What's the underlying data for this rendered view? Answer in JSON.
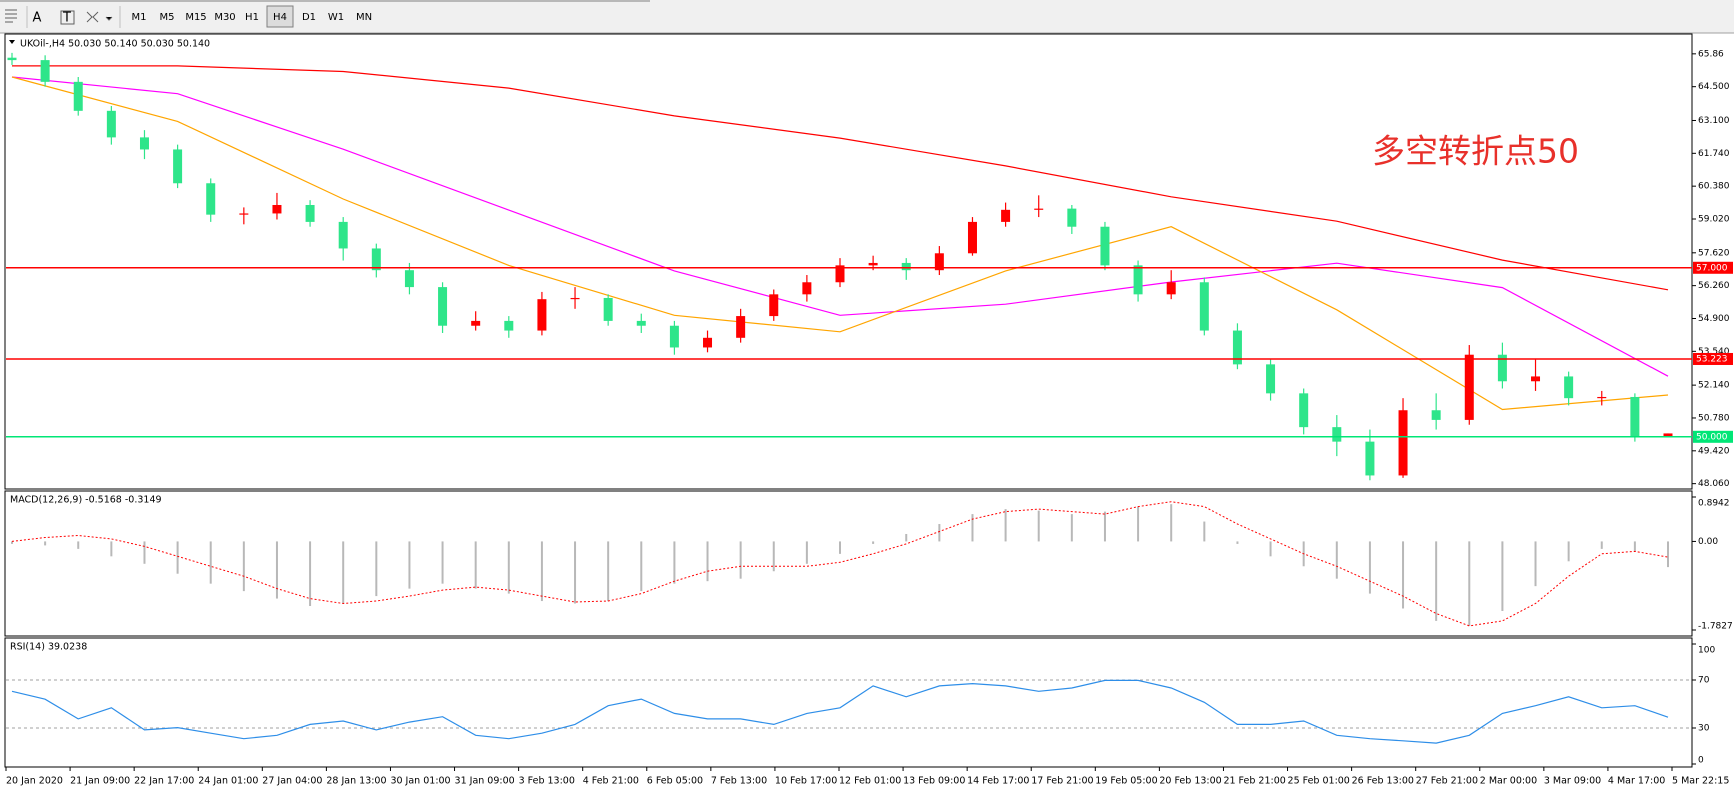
{
  "toolbar": {
    "tools": [
      "A",
      "T"
    ],
    "timeframes": [
      "M1",
      "M5",
      "M15",
      "M30",
      "H1",
      "H4",
      "D1",
      "W1",
      "MN"
    ],
    "active": 5
  },
  "chart_data": [
    {
      "type": "candlestick",
      "title": "UKOil-,H4  50.030 50.140 50.030 50.140",
      "annotation": "多空转折点50",
      "up_color": "#ff0000",
      "down_color": "#2ee58a",
      "open": [
        65.7,
        65.6,
        64.7,
        63.5,
        62.4,
        61.9,
        60.5,
        59.2,
        59.25,
        59.6,
        58.9,
        57.8,
        56.9,
        56.2,
        54.6,
        54.8,
        54.4,
        55.7,
        55.75,
        54.8,
        54.6,
        53.7,
        54.1,
        55.0,
        55.9,
        56.4,
        57.1,
        57.2,
        56.9,
        57.6,
        58.9,
        59.4,
        59.45,
        58.7,
        57.1,
        55.9,
        56.4,
        54.4,
        53.0,
        51.8,
        50.4,
        49.8,
        48.4,
        51.1,
        50.7,
        53.4,
        52.3,
        52.5,
        51.6,
        51.65,
        50.03
      ],
      "high": [
        65.9,
        65.8,
        64.9,
        63.7,
        62.7,
        62.1,
        60.7,
        59.5,
        60.1,
        59.8,
        59.1,
        58.0,
        57.2,
        56.4,
        55.2,
        55.0,
        56.0,
        56.2,
        55.9,
        55.1,
        54.8,
        54.4,
        55.3,
        56.1,
        56.7,
        57.4,
        57.5,
        57.4,
        57.9,
        59.1,
        59.7,
        60.0,
        59.6,
        58.9,
        57.3,
        56.9,
        56.6,
        54.7,
        53.2,
        52.0,
        50.9,
        50.3,
        51.6,
        51.8,
        53.8,
        53.9,
        53.2,
        52.7,
        51.9,
        51.8,
        50.14
      ],
      "low": [
        65.4,
        64.5,
        63.3,
        62.1,
        61.5,
        60.3,
        58.9,
        58.8,
        59.0,
        58.7,
        57.3,
        56.6,
        55.9,
        54.3,
        54.4,
        54.1,
        54.2,
        55.3,
        54.6,
        54.3,
        53.4,
        53.5,
        53.9,
        54.8,
        55.6,
        56.2,
        56.9,
        56.5,
        56.7,
        57.5,
        58.7,
        59.1,
        58.4,
        56.9,
        55.6,
        55.7,
        54.2,
        52.8,
        51.5,
        50.1,
        49.2,
        48.2,
        48.3,
        50.3,
        50.5,
        52.0,
        51.9,
        51.3,
        51.3,
        49.8,
        50.03
      ],
      "close": [
        65.6,
        64.7,
        63.5,
        62.4,
        61.9,
        60.5,
        59.2,
        59.25,
        59.6,
        58.9,
        57.8,
        56.9,
        56.2,
        54.6,
        54.8,
        54.4,
        55.7,
        55.75,
        54.8,
        54.6,
        53.7,
        54.1,
        55.0,
        55.9,
        56.4,
        57.1,
        57.2,
        56.9,
        57.6,
        58.9,
        59.4,
        59.45,
        58.7,
        57.1,
        55.9,
        56.4,
        54.4,
        53.0,
        51.8,
        50.4,
        49.8,
        48.4,
        51.1,
        50.7,
        53.4,
        52.3,
        52.5,
        51.6,
        51.65,
        50.0,
        50.14
      ],
      "series": [
        {
          "color": "#ff0000",
          "values": [
            65.36,
            65.36,
            65.13,
            64.44,
            63.29,
            62.37,
            61.22,
            59.94,
            58.93,
            57.32,
            56.09
          ]
        },
        {
          "color": "#ff00ff",
          "values": [
            64.9,
            64.21,
            61.91,
            59.39,
            56.87,
            55.03,
            55.49,
            56.41,
            57.19,
            56.18,
            52.51
          ]
        },
        {
          "color": "#ffa500",
          "values": [
            64.9,
            63.06,
            59.85,
            57.1,
            55.03,
            54.35,
            56.87,
            58.7,
            55.26,
            51.13,
            51.73
          ]
        }
      ],
      "levels": [
        {
          "value": 57,
          "label": "57.000",
          "color": "#ff0000"
        },
        {
          "value": 53.223,
          "label": "53.223",
          "color": "#ff0000"
        },
        {
          "value": 50,
          "label": "50.000",
          "color": "#00e676"
        }
      ],
      "ylim": [
        47.88,
        66.64
      ],
      "yticks": [
        {
          "value": 65.86,
          "label": "65.86"
        },
        {
          "value": 64.5,
          "label": "64.500"
        },
        {
          "value": 63.1,
          "label": "63.100"
        },
        {
          "value": 61.74,
          "label": "61.740"
        },
        {
          "value": 60.38,
          "label": "60.380"
        },
        {
          "value": 59.02,
          "label": "59.020"
        },
        {
          "value": 57.62,
          "label": "57.620"
        },
        {
          "value": 56.26,
          "label": "56.260"
        },
        {
          "value": 54.9,
          "label": "54.900"
        },
        {
          "value": 53.54,
          "label": "53.540"
        },
        {
          "value": 52.14,
          "label": "52.140"
        },
        {
          "value": 50.78,
          "label": "50.780"
        },
        {
          "value": 49.42,
          "label": "49.420"
        },
        {
          "value": 48.06,
          "label": "48.060"
        }
      ],
      "x_labels": [
        "20 Jan 2020",
        "21 Jan 09:00",
        "22 Jan 17:00",
        "24 Jan 01:00",
        "27 Jan 04:00",
        "28 Jan 13:00",
        "30 Jan 01:00",
        "31 Jan 09:00",
        "3 Feb 13:00",
        "4 Feb 21:00",
        "6 Feb 05:00",
        "7 Feb 13:00",
        "10 Feb 17:00",
        "12 Feb 01:00",
        "13 Feb 09:00",
        "14 Feb 17:00",
        "17 Feb 21:00",
        "19 Feb 05:00",
        "20 Feb 13:00",
        "21 Feb 21:00",
        "25 Feb 01:00",
        "26 Feb 13:00",
        "27 Feb 21:00",
        "2 Mar 00:00",
        "3 Mar 09:00",
        "4 Mar 17:00",
        "5 Mar 22:15"
      ]
    },
    {
      "type": "macd",
      "title": "MACD(12,26,9) -0.5168 -0.3149",
      "hist_color": "#b8b8b8",
      "signal_color": "#ff0000",
      "histogram": [
        -0.05,
        -0.08,
        -0.15,
        -0.3,
        -0.45,
        -0.65,
        -0.85,
        -1.0,
        -1.15,
        -1.3,
        -1.25,
        -1.1,
        -0.95,
        -0.85,
        -0.95,
        -1.05,
        -1.2,
        -1.25,
        -1.2,
        -1.0,
        -0.85,
        -0.8,
        -0.75,
        -0.6,
        -0.45,
        -0.25,
        -0.05,
        0.15,
        0.35,
        0.55,
        0.65,
        0.62,
        0.55,
        0.6,
        0.7,
        0.75,
        0.4,
        -0.05,
        -0.3,
        -0.5,
        -0.75,
        -1.05,
        -1.35,
        -1.6,
        -1.7,
        -1.4,
        -0.9,
        -0.4,
        -0.15,
        -0.2,
        -0.5168
      ],
      "signal": [
        0.0,
        0.08,
        0.12,
        0.05,
        -0.1,
        -0.3,
        -0.5,
        -0.7,
        -0.95,
        -1.15,
        -1.25,
        -1.2,
        -1.1,
        -0.98,
        -0.92,
        -0.98,
        -1.1,
        -1.22,
        -1.2,
        -1.05,
        -0.8,
        -0.6,
        -0.5,
        -0.5,
        -0.5,
        -0.42,
        -0.25,
        -0.05,
        0.2,
        0.45,
        0.6,
        0.65,
        0.6,
        0.55,
        0.7,
        0.8,
        0.7,
        0.35,
        0.05,
        -0.25,
        -0.5,
        -0.8,
        -1.1,
        -1.45,
        -1.7,
        -1.6,
        -1.25,
        -0.7,
        -0.25,
        -0.2,
        -0.3149
      ],
      "ylim": [
        -1.7827,
        0.8942
      ],
      "yticks": [
        0.8942,
        {
          "value": 0,
          "label": "0.00"
        },
        -1.7827
      ]
    },
    {
      "type": "rsi",
      "title": "RSI(14) 39.0238",
      "color": "#2e8ee8",
      "values": [
        60.6,
        54.0,
        37.6,
        46.8,
        28.4,
        30.3,
        25.7,
        21.1,
        23.9,
        33.0,
        35.8,
        28.4,
        34.9,
        39.4,
        23.9,
        21.1,
        25.7,
        33.0,
        48.6,
        54.1,
        42.2,
        37.6,
        37.6,
        33.0,
        42.2,
        46.8,
        65.1,
        56.0,
        65.1,
        67.0,
        65.1,
        60.6,
        63.3,
        69.7,
        69.7,
        63.3,
        51.4,
        33.0,
        33.0,
        35.8,
        23.9,
        21.1,
        19.3,
        17.4,
        23.9,
        42.2,
        48.6,
        56.0,
        46.8,
        48.6,
        39.0238
      ],
      "ylim": [
        0,
        100
      ],
      "yticks": [
        100,
        70,
        30,
        0
      ],
      "dashed_levels": [
        70,
        30
      ]
    }
  ]
}
